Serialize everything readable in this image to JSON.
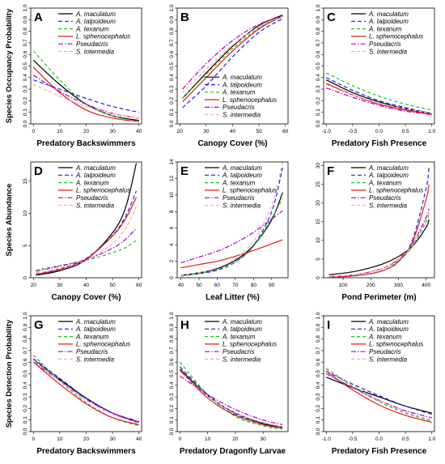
{
  "legend_order": [
    "maculatum",
    "talpoideum",
    "texanum",
    "sphenocephalus",
    "pseudacris",
    "intermedia"
  ],
  "series_style": {
    "maculatum": {
      "name": "A. maculatum",
      "color": "#000000",
      "dash": ""
    },
    "talpoideum": {
      "name": "A. talpoideum",
      "color": "#1f1fe0",
      "dash": "5,3"
    },
    "texanum": {
      "name": "A. texanum",
      "color": "#22c322",
      "dash": "4,3"
    },
    "sphenocephalus": {
      "name": "L. sphenocephalus",
      "color": "#e01b1b",
      "dash": ""
    },
    "pseudacris": {
      "name": "Pseudacris",
      "color": "#b000c8",
      "dash": "6,2,1.5,2"
    },
    "intermedia": {
      "name": "S. intermedia",
      "color": "#f7a3b8",
      "dash": "4,3"
    }
  },
  "chart_data": [
    {
      "panel_label": "A",
      "type": "line",
      "xlabel": "Predatory Backswimmers",
      "ylabel": "Species Occupancy Probability",
      "xlim": [
        -1,
        41
      ],
      "ylim": [
        0,
        1
      ],
      "xticks": [
        0,
        10,
        20,
        30,
        40
      ],
      "yticks": [
        0.0,
        0.1,
        0.2,
        0.3,
        0.4,
        0.5,
        0.6,
        0.7,
        0.8,
        0.9,
        1.0
      ],
      "x": [
        0,
        10,
        20,
        30,
        40
      ],
      "series": [
        {
          "name": "A. maculatum",
          "values": [
            0.55,
            0.34,
            0.17,
            0.07,
            0.03
          ]
        },
        {
          "name": "A. talpoideum",
          "values": [
            0.38,
            0.3,
            0.22,
            0.15,
            0.1
          ]
        },
        {
          "name": "A. texanum",
          "values": [
            0.63,
            0.38,
            0.17,
            0.07,
            0.02
          ]
        },
        {
          "name": "L. sphenocephalus",
          "values": [
            0.49,
            0.27,
            0.12,
            0.05,
            0.02
          ]
        },
        {
          "name": "Pseudacris",
          "values": [
            0.42,
            0.28,
            0.17,
            0.09,
            0.05
          ]
        },
        {
          "name": "S. intermedia",
          "values": [
            0.34,
            0.24,
            0.15,
            0.09,
            0.05
          ]
        }
      ]
    },
    {
      "panel_label": "B",
      "type": "line",
      "xlabel": "Canopy Cover (%)",
      "ylabel": "",
      "xlim": [
        19,
        61
      ],
      "ylim": [
        0,
        1
      ],
      "xticks": [
        20,
        30,
        40,
        50,
        60
      ],
      "yticks": [
        0.0,
        0.1,
        0.2,
        0.3,
        0.4,
        0.5,
        0.6,
        0.7,
        0.8,
        0.9,
        1.0
      ],
      "x": [
        21,
        30,
        40,
        50,
        59
      ],
      "series": [
        {
          "name": "A. maculatum",
          "values": [
            0.22,
            0.44,
            0.67,
            0.85,
            0.94
          ]
        },
        {
          "name": "A. talpoideum",
          "values": [
            0.14,
            0.33,
            0.58,
            0.79,
            0.91
          ]
        },
        {
          "name": "A. texanum",
          "values": [
            0.22,
            0.43,
            0.65,
            0.83,
            0.93
          ]
        },
        {
          "name": "L. sphenocephalus",
          "values": [
            0.19,
            0.4,
            0.63,
            0.82,
            0.93
          ]
        },
        {
          "name": "Pseudacris",
          "values": [
            0.3,
            0.52,
            0.72,
            0.86,
            0.93
          ]
        },
        {
          "name": "S. intermedia",
          "values": [
            0.27,
            0.47,
            0.68,
            0.84,
            0.93
          ]
        }
      ]
    },
    {
      "panel_label": "C",
      "type": "line",
      "xlabel": "Predatory Fish Presence",
      "ylabel": "",
      "xlim": [
        -1.05,
        1.05
      ],
      "ylim": [
        0,
        1
      ],
      "xticks": [
        -1.0,
        -0.5,
        0.0,
        0.5,
        1.0
      ],
      "yticks": [
        0.0,
        0.1,
        0.2,
        0.3,
        0.4,
        0.5,
        0.6,
        0.7,
        0.8,
        0.9,
        1.0
      ],
      "x": [
        -1.0,
        -0.5,
        0.0,
        0.5,
        1.0
      ],
      "series": [
        {
          "name": "A. maculatum",
          "values": [
            0.38,
            0.27,
            0.19,
            0.13,
            0.09
          ]
        },
        {
          "name": "A. talpoideum",
          "values": [
            0.4,
            0.29,
            0.2,
            0.14,
            0.09
          ]
        },
        {
          "name": "A. texanum",
          "values": [
            0.44,
            0.33,
            0.24,
            0.17,
            0.12
          ]
        },
        {
          "name": "L. sphenocephalus",
          "values": [
            0.35,
            0.25,
            0.17,
            0.12,
            0.08
          ]
        },
        {
          "name": "Pseudacris",
          "values": [
            0.31,
            0.23,
            0.16,
            0.11,
            0.08
          ]
        },
        {
          "name": "S. intermedia",
          "values": [
            0.34,
            0.25,
            0.18,
            0.13,
            0.09
          ]
        }
      ]
    },
    {
      "panel_label": "D",
      "type": "line",
      "xlabel": "Canopy Cover (%)",
      "ylabel": "Species Abundance",
      "xlim": [
        19,
        61
      ],
      "ylim": [
        0,
        18
      ],
      "xticks": [
        20,
        30,
        40,
        50,
        60
      ],
      "yticks": [
        0,
        5,
        10,
        15
      ],
      "x": [
        21,
        30,
        40,
        50,
        55,
        59
      ],
      "series": [
        {
          "name": "A. maculatum",
          "values": [
            0.4,
            1.1,
            2.8,
            7.0,
            11.0,
            17.8
          ]
        },
        {
          "name": "A. talpoideum",
          "values": [
            0.6,
            1.4,
            3.0,
            6.6,
            9.6,
            13.5
          ]
        },
        {
          "name": "A. texanum",
          "values": [
            1.2,
            1.9,
            2.7,
            3.9,
            4.7,
            5.8
          ]
        },
        {
          "name": "L. sphenocephalus",
          "values": [
            0.5,
            1.3,
            2.9,
            6.5,
            9.2,
            12.5
          ]
        },
        {
          "name": "Pseudacris",
          "values": [
            1.0,
            1.8,
            2.8,
            4.6,
            6.0,
            7.7
          ]
        },
        {
          "name": "S. intermedia",
          "values": [
            0.7,
            1.4,
            2.7,
            5.3,
            7.7,
            11.0
          ]
        }
      ]
    },
    {
      "panel_label": "E",
      "type": "line",
      "xlabel": "Leaf Litter (%)",
      "ylabel": "",
      "xlim": [
        38,
        99
      ],
      "ylim": [
        0,
        14
      ],
      "xticks": [
        40,
        50,
        60,
        70,
        80,
        90
      ],
      "yticks": [
        0,
        2,
        4,
        6,
        8,
        10,
        12,
        14
      ],
      "x": [
        40,
        50,
        60,
        70,
        80,
        90,
        96
      ],
      "series": [
        {
          "name": "A. maculatum",
          "values": [
            0.3,
            0.6,
            1.1,
            2.1,
            3.9,
            7.0,
            10.3
          ]
        },
        {
          "name": "A. talpoideum",
          "values": [
            0.2,
            0.5,
            0.9,
            1.9,
            3.9,
            8.0,
            13.3
          ]
        },
        {
          "name": "A. texanum",
          "values": [
            0.2,
            0.5,
            1.0,
            1.9,
            3.8,
            7.2,
            9.6
          ]
        },
        {
          "name": "L. sphenocephalus",
          "values": [
            1.2,
            1.6,
            2.0,
            2.6,
            3.3,
            4.1,
            4.6
          ]
        },
        {
          "name": "Pseudacris",
          "values": [
            1.8,
            2.5,
            3.2,
            4.2,
            5.5,
            7.1,
            8.1
          ]
        },
        {
          "name": "S. intermedia",
          "values": [
            0.3,
            0.6,
            1.2,
            2.3,
            4.4,
            8.8,
            14.0
          ]
        }
      ]
    },
    {
      "panel_label": "F",
      "type": "line",
      "xlabel": "Pond Perimeter (m)",
      "ylabel": "",
      "xlim": [
        30,
        430
      ],
      "ylim": [
        0,
        31
      ],
      "xticks": [
        100,
        200,
        300,
        400
      ],
      "yticks": [
        0,
        5,
        10,
        15,
        20,
        25,
        30
      ],
      "x": [
        50,
        100,
        150,
        200,
        250,
        300,
        350,
        400,
        410
      ],
      "series": [
        {
          "name": "A. maculatum",
          "values": [
            0.8,
            1.2,
            1.8,
            2.7,
            3.9,
            5.7,
            8.4,
            13.5,
            15.6
          ]
        },
        {
          "name": "A. talpoideum",
          "values": [
            0.15,
            0.3,
            0.6,
            1.1,
            2.1,
            4.3,
            10.0,
            24.0,
            29.5
          ]
        },
        {
          "name": "A. texanum",
          "values": [
            0.3,
            0.5,
            0.9,
            1.6,
            2.7,
            4.6,
            8.3,
            15.0,
            17.0
          ]
        },
        {
          "name": "L. sphenocephalus",
          "values": [
            0.15,
            0.3,
            0.6,
            1.1,
            2.1,
            4.4,
            9.5,
            21.0,
            25.0
          ]
        },
        {
          "name": "Pseudacris",
          "values": [
            0.3,
            0.5,
            0.9,
            1.6,
            2.8,
            5.0,
            9.0,
            16.2,
            18.5
          ]
        },
        {
          "name": "S. intermedia",
          "values": [
            0.3,
            0.5,
            0.9,
            1.6,
            2.8,
            5.0,
            8.8,
            15.5,
            17.5
          ]
        }
      ]
    },
    {
      "panel_label": "G",
      "type": "line",
      "xlabel": "Predatory Backswimmers",
      "ylabel": "Species Detection Probability",
      "xlim": [
        -1,
        41
      ],
      "ylim": [
        0,
        1
      ],
      "xticks": [
        0,
        10,
        20,
        30,
        40
      ],
      "yticks": [
        0.0,
        0.1,
        0.2,
        0.3,
        0.4,
        0.5,
        0.6,
        0.7,
        0.8,
        0.9,
        1.0
      ],
      "x": [
        0,
        10,
        20,
        30,
        40
      ],
      "series": [
        {
          "name": "A. maculatum",
          "values": [
            0.62,
            0.45,
            0.29,
            0.16,
            0.08
          ]
        },
        {
          "name": "A. talpoideum",
          "values": [
            0.63,
            0.46,
            0.29,
            0.16,
            0.08
          ]
        },
        {
          "name": "A. texanum",
          "values": [
            0.66,
            0.44,
            0.25,
            0.12,
            0.05
          ]
        },
        {
          "name": "L. sphenocephalus",
          "values": [
            0.6,
            0.41,
            0.24,
            0.12,
            0.06
          ]
        },
        {
          "name": "Pseudacris",
          "values": [
            0.6,
            0.44,
            0.28,
            0.16,
            0.09
          ]
        },
        {
          "name": "S. intermedia",
          "values": [
            0.62,
            0.44,
            0.27,
            0.15,
            0.07
          ]
        }
      ]
    },
    {
      "panel_label": "H",
      "type": "line",
      "xlabel": "Predatory Dragonfly Larvae",
      "ylabel": "",
      "xlim": [
        -1,
        39
      ],
      "ylim": [
        0,
        1
      ],
      "xticks": [
        0,
        10,
        20,
        30
      ],
      "yticks": [
        0.0,
        0.1,
        0.2,
        0.3,
        0.4,
        0.5,
        0.6,
        0.7,
        0.8,
        0.9,
        1.0
      ],
      "x": [
        0,
        10,
        20,
        30,
        37
      ],
      "series": [
        {
          "name": "A. maculatum",
          "values": [
            0.54,
            0.31,
            0.16,
            0.07,
            0.04
          ]
        },
        {
          "name": "A. talpoideum",
          "values": [
            0.56,
            0.32,
            0.15,
            0.06,
            0.03
          ]
        },
        {
          "name": "A. texanum",
          "values": [
            0.6,
            0.32,
            0.13,
            0.05,
            0.02
          ]
        },
        {
          "name": "L. sphenocephalus",
          "values": [
            0.53,
            0.29,
            0.14,
            0.06,
            0.03
          ]
        },
        {
          "name": "Pseudacris",
          "values": [
            0.48,
            0.32,
            0.19,
            0.1,
            0.06
          ]
        },
        {
          "name": "S. intermedia",
          "values": [
            0.52,
            0.31,
            0.16,
            0.08,
            0.04
          ]
        }
      ]
    },
    {
      "panel_label": "I",
      "type": "line",
      "xlabel": "Predatory Fish Presence",
      "ylabel": "",
      "xlim": [
        -1.05,
        1.05
      ],
      "ylim": [
        0,
        1
      ],
      "xticks": [
        -1.0,
        -0.5,
        0.0,
        0.5,
        1.0
      ],
      "yticks": [
        0.0,
        0.1,
        0.2,
        0.3,
        0.4,
        0.5,
        0.6,
        0.7,
        0.8,
        0.9,
        1.0
      ],
      "x": [
        -1.0,
        -0.5,
        0.0,
        0.5,
        1.0
      ],
      "series": [
        {
          "name": "A. maculatum",
          "values": [
            0.47,
            0.38,
            0.3,
            0.22,
            0.16
          ]
        },
        {
          "name": "A. talpoideum",
          "values": [
            0.52,
            0.41,
            0.31,
            0.22,
            0.15
          ]
        },
        {
          "name": "A. texanum",
          "values": [
            0.54,
            0.39,
            0.26,
            0.16,
            0.09
          ]
        },
        {
          "name": "L. sphenocephalus",
          "values": [
            0.52,
            0.36,
            0.23,
            0.14,
            0.08
          ]
        },
        {
          "name": "Pseudacris",
          "values": [
            0.5,
            0.38,
            0.27,
            0.18,
            0.12
          ]
        },
        {
          "name": "S. intermedia",
          "values": [
            0.55,
            0.4,
            0.27,
            0.17,
            0.1
          ]
        }
      ]
    }
  ]
}
